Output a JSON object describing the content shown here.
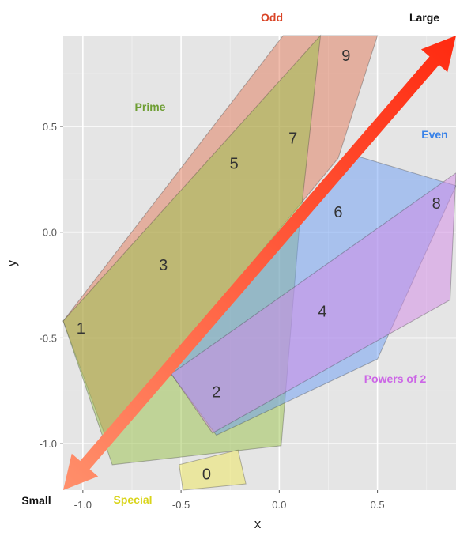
{
  "chart_data": {
    "type": "polygon",
    "xlabel": "x",
    "ylabel": "y",
    "xlim": [
      -1.1,
      0.9
    ],
    "ylim": [
      -1.22,
      0.93
    ],
    "x_ticks": [
      -1.0,
      -0.5,
      0.0,
      0.5
    ],
    "x_tick_labels": [
      "-1.0",
      "-0.5",
      "0.0",
      "0.5"
    ],
    "y_ticks": [
      -1.0,
      -0.5,
      0.0,
      0.5
    ],
    "y_tick_labels": [
      "-1.0",
      "-0.5",
      "0.0",
      "0.5"
    ],
    "background": "#e5e5e5",
    "grid": true,
    "groups": [
      {
        "name": "Odd",
        "color": "#e27a5a",
        "label_color": "#d94426",
        "polygon": [
          [
            -1.1,
            -0.42
          ],
          [
            0.02,
            0.93
          ],
          [
            0.5,
            0.93
          ],
          [
            0.3,
            0.35
          ],
          [
            -0.88,
            -0.98
          ]
        ]
      },
      {
        "name": "Prime",
        "color": "#9ac24a",
        "label_color": "#6e9e33",
        "polygon": [
          [
            -1.1,
            -0.42
          ],
          [
            0.21,
            0.93
          ],
          [
            0.1,
            0.0
          ],
          [
            0.01,
            -1.01
          ],
          [
            -0.85,
            -1.1
          ]
        ]
      },
      {
        "name": "Even",
        "color": "#6b9df5",
        "label_color": "#3a83e8",
        "polygon": [
          [
            -0.55,
            -0.67
          ],
          [
            0.36,
            0.37
          ],
          [
            0.9,
            0.22
          ],
          [
            0.5,
            -0.6
          ],
          [
            -0.32,
            -0.96
          ]
        ]
      },
      {
        "name": "Powers of 2",
        "color": "#d38ae8",
        "label_color": "#cc66e6",
        "polygon": [
          [
            -0.55,
            -0.67
          ],
          [
            0.9,
            0.28
          ],
          [
            0.87,
            -0.32
          ],
          [
            -0.34,
            -0.95
          ]
        ]
      },
      {
        "name": "Special",
        "color": "#efe75a",
        "label_color": "#d9d41a",
        "polygon": [
          [
            -0.51,
            -1.1
          ],
          [
            -0.21,
            -1.03
          ],
          [
            -0.17,
            -1.19
          ],
          [
            -0.49,
            -1.22
          ]
        ]
      }
    ],
    "points": [
      {
        "label": "0",
        "x": -0.37,
        "y": -1.15
      },
      {
        "label": "1",
        "x": -1.01,
        "y": -0.46
      },
      {
        "label": "2",
        "x": -0.32,
        "y": -0.76
      },
      {
        "label": "3",
        "x": -0.59,
        "y": -0.16
      },
      {
        "label": "4",
        "x": 0.22,
        "y": -0.38
      },
      {
        "label": "5",
        "x": -0.23,
        "y": 0.32
      },
      {
        "label": "6",
        "x": 0.3,
        "y": 0.09
      },
      {
        "label": "7",
        "x": 0.07,
        "y": 0.44
      },
      {
        "label": "8",
        "x": 0.8,
        "y": 0.13
      },
      {
        "label": "9",
        "x": 0.34,
        "y": 0.83
      }
    ],
    "arrow": {
      "start_label": "Small",
      "end_label": "Large",
      "start": [
        -1.1,
        -1.22
      ],
      "end": [
        0.9,
        0.93
      ],
      "color_start": "#ff8f6b",
      "color_end": "#ff2a10"
    }
  }
}
